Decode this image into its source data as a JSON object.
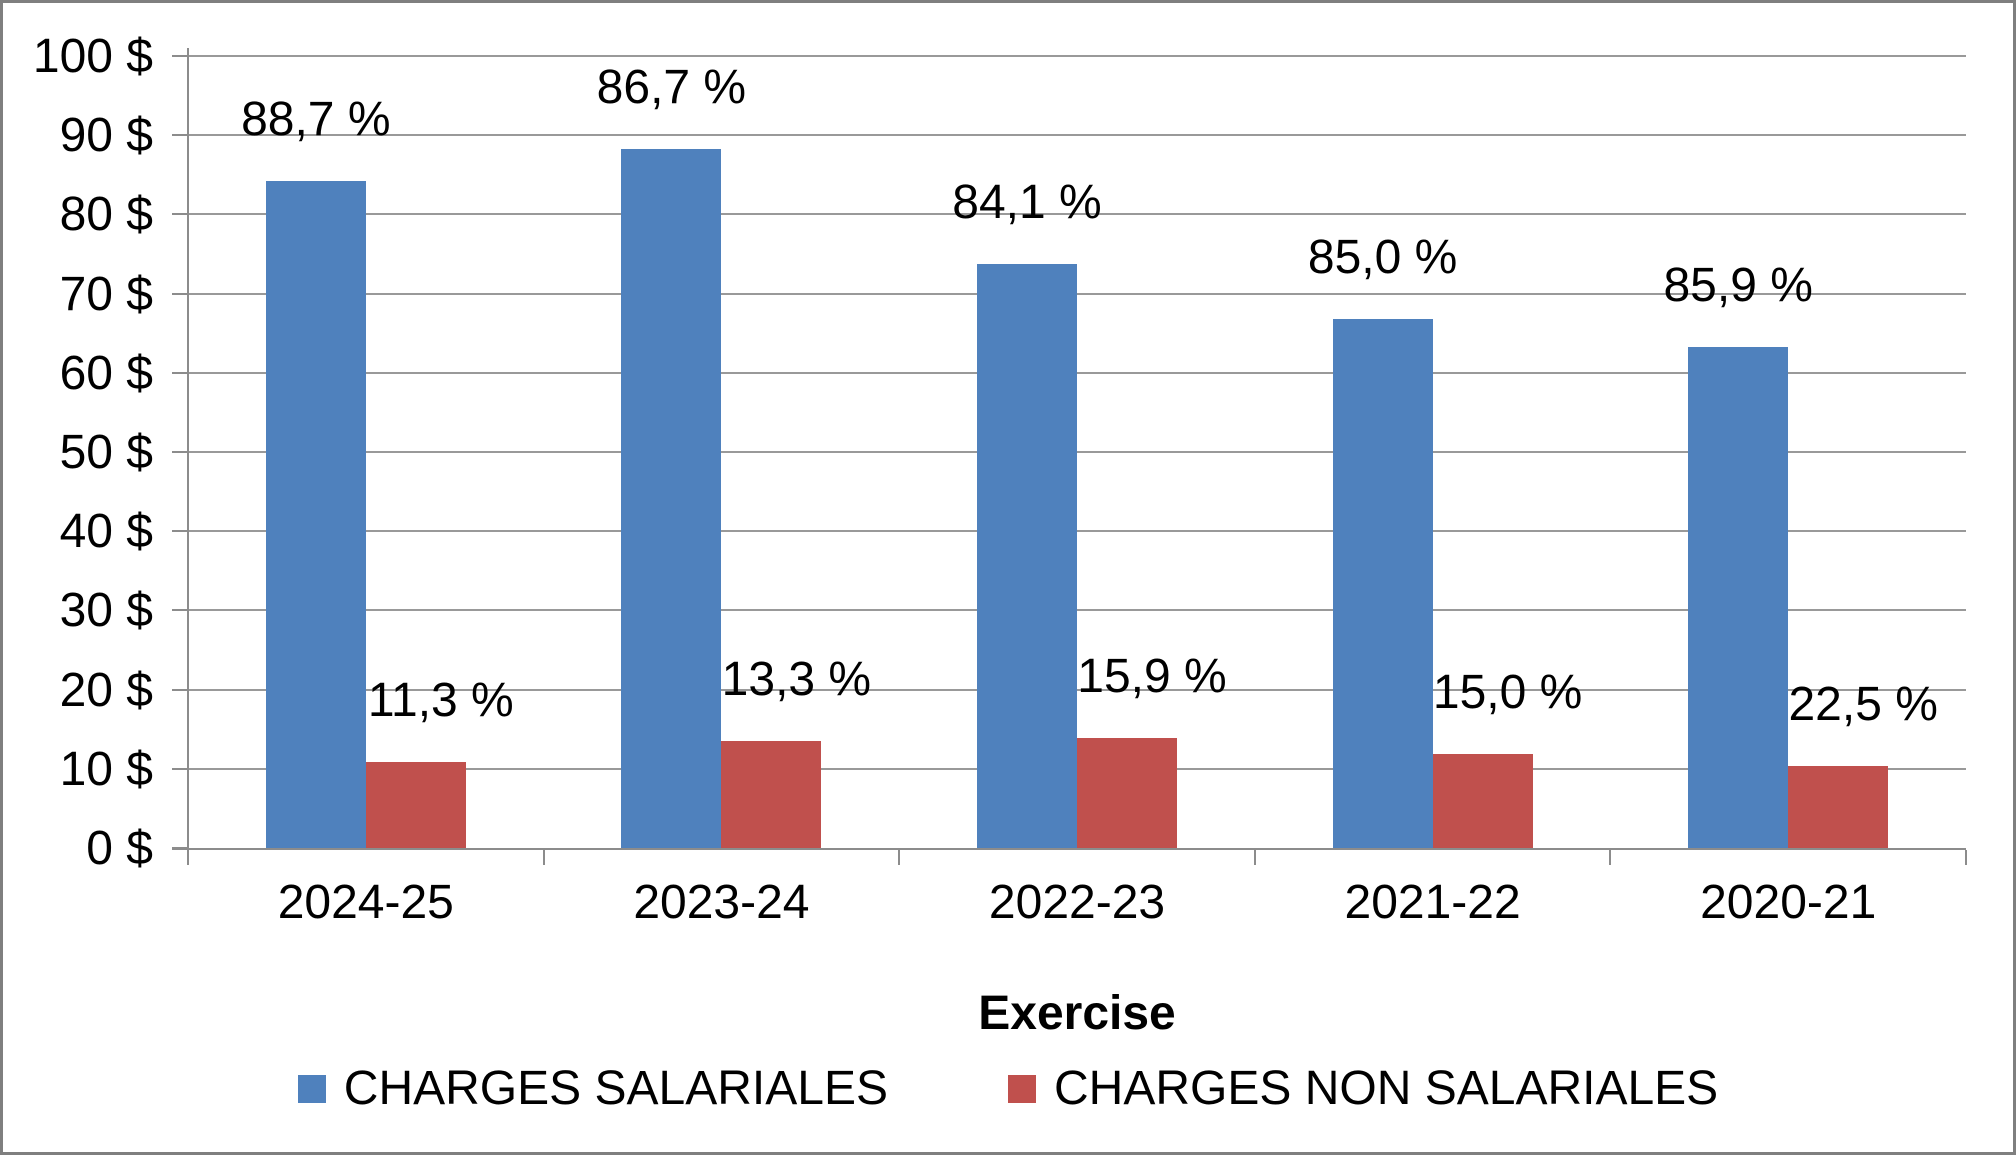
{
  "chart_data": {
    "type": "bar",
    "title": "",
    "xlabel": "Exercise",
    "ylabel": "",
    "categories": [
      "2024-25",
      "2023-24",
      "2022-23",
      "2021-22",
      "2020-21"
    ],
    "series": [
      {
        "name": "CHARGES SALARIALES",
        "color": "#4F81BD",
        "values": [
          84.2,
          88.2,
          73.7,
          66.8,
          63.3
        ],
        "data_labels": [
          "88,7 %",
          "86,7 %",
          "84,1 %",
          "85,0 %",
          "85,9 %"
        ]
      },
      {
        "name": "CHARGES NON SALARIALES",
        "color": "#C0504D",
        "values": [
          10.8,
          13.5,
          13.9,
          11.9,
          10.4
        ],
        "data_labels": [
          "11,3 %",
          "13,3 %",
          "15,9 %",
          "15,0 %",
          "22,5 %"
        ]
      }
    ],
    "ylim": [
      0,
      100
    ],
    "ytick_step": 10,
    "yticks": [
      {
        "label": "100 $",
        "value": 100
      },
      {
        "label": "90 $",
        "value": 90
      },
      {
        "label": "80 $",
        "value": 80
      },
      {
        "label": "70 $",
        "value": 70
      },
      {
        "label": "60 $",
        "value": 60
      },
      {
        "label": "50 $",
        "value": 50
      },
      {
        "label": "40 $",
        "value": 40
      },
      {
        "label": "30 $",
        "value": 30
      },
      {
        "label": "20 $",
        "value": 20
      },
      {
        "label": "10 $",
        "value": 10
      },
      {
        "label": "0 $",
        "value": 0
      }
    ],
    "grid": true,
    "legend_position": "bottom",
    "colors": {
      "gridline": "#999999",
      "axis": "#8C8C8C",
      "border": "#7F7F7F",
      "text": "#000000"
    }
  }
}
